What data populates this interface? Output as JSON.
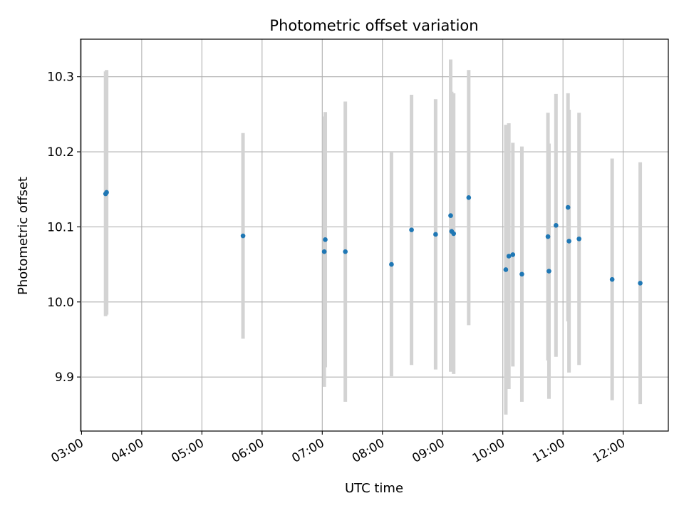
{
  "chart_data": {
    "type": "scatter",
    "title": "Photometric offset variation",
    "xlabel": "UTC time",
    "ylabel": "Photometric offset",
    "x_ticks": [
      "03:00",
      "04:00",
      "05:00",
      "06:00",
      "07:00",
      "08:00",
      "09:00",
      "10:00",
      "11:00",
      "12:00"
    ],
    "y_ticks": [
      "9.9",
      "10.0",
      "10.1",
      "10.2",
      "10.3"
    ],
    "xlim": [
      "02:59",
      "12:45"
    ],
    "ylim": [
      9.828,
      10.35
    ],
    "grid": true,
    "errorbar_color": "#d3d3d3",
    "point_color": "#1f77b4",
    "series": [
      {
        "points": [
          {
            "x": "03:24",
            "y": 10.144,
            "yerr": 0.163
          },
          {
            "x": "03:25",
            "y": 10.146,
            "yerr": 0.163
          },
          {
            "x": "05:41",
            "y": 10.088,
            "yerr": 0.137
          },
          {
            "x": "07:02",
            "y": 10.067,
            "yerr": 0.18
          },
          {
            "x": "07:03",
            "y": 10.083,
            "yerr": 0.17
          },
          {
            "x": "07:23",
            "y": 10.067,
            "yerr": 0.2
          },
          {
            "x": "08:09",
            "y": 10.05,
            "yerr": 0.149
          },
          {
            "x": "08:29",
            "y": 10.096,
            "yerr": 0.18
          },
          {
            "x": "08:53",
            "y": 10.09,
            "yerr": 0.18
          },
          {
            "x": "09:08",
            "y": 10.115,
            "yerr": 0.208
          },
          {
            "x": "09:09",
            "y": 10.094,
            "yerr": 0.186
          },
          {
            "x": "09:11",
            "y": 10.091,
            "yerr": 0.187
          },
          {
            "x": "09:26",
            "y": 10.139,
            "yerr": 0.17
          },
          {
            "x": "10:03",
            "y": 10.043,
            "yerr": 0.193
          },
          {
            "x": "10:06",
            "y": 10.061,
            "yerr": 0.177
          },
          {
            "x": "10:10",
            "y": 10.063,
            "yerr": 0.149
          },
          {
            "x": "10:19",
            "y": 10.037,
            "yerr": 0.17
          },
          {
            "x": "10:45",
            "y": 10.087,
            "yerr": 0.165
          },
          {
            "x": "10:46",
            "y": 10.041,
            "yerr": 0.17
          },
          {
            "x": "10:53",
            "y": 10.102,
            "yerr": 0.175
          },
          {
            "x": "11:05",
            "y": 10.126,
            "yerr": 0.152
          },
          {
            "x": "11:06",
            "y": 10.081,
            "yerr": 0.175
          },
          {
            "x": "11:16",
            "y": 10.084,
            "yerr": 0.168
          },
          {
            "x": "11:49",
            "y": 10.03,
            "yerr": 0.161
          },
          {
            "x": "12:17",
            "y": 10.025,
            "yerr": 0.161
          }
        ]
      }
    ]
  }
}
